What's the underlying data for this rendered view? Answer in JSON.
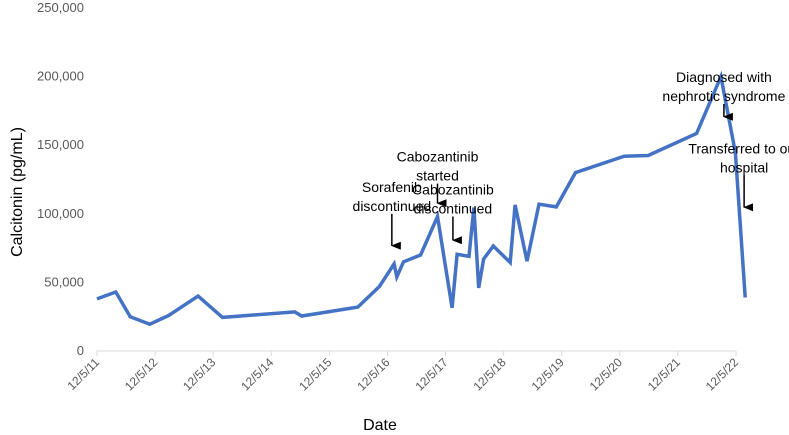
{
  "chart_data": {
    "type": "line",
    "title": "",
    "xlabel": "Date",
    "ylabel": "Calcitonin  (pg/mL)",
    "ylim": [
      0,
      250000
    ],
    "y_ticks": [
      0,
      50000,
      100000,
      150000,
      200000,
      250000
    ],
    "y_tick_labels": [
      "0",
      "50,000",
      "100,000",
      "150,000",
      "200,000",
      "250,000"
    ],
    "x_range": [
      "2011-12-05",
      "2022-12-05"
    ],
    "x_tick_labels": [
      "12/5/11",
      "12/5/12",
      "12/5/13",
      "12/5/14",
      "12/5/15",
      "12/5/16",
      "12/5/17",
      "12/5/18",
      "12/5/19",
      "12/5/20",
      "12/5/21",
      "12/5/22"
    ],
    "grid": false,
    "legend": "none",
    "line_color": "#4472C4",
    "series": [
      {
        "points": [
          [
            "2011-12-05",
            38000
          ],
          [
            "2012-04-01",
            43000
          ],
          [
            "2012-07-01",
            25000
          ],
          [
            "2012-11-01",
            19500
          ],
          [
            "2013-03-01",
            26000
          ],
          [
            "2013-09-01",
            40000
          ],
          [
            "2014-02-01",
            24500
          ],
          [
            "2015-05-01",
            28500
          ],
          [
            "2015-06-15",
            25500
          ],
          [
            "2016-06-01",
            32000
          ],
          [
            "2016-10-15",
            47000
          ],
          [
            "2017-01-15",
            63500
          ],
          [
            "2017-02-01",
            54000
          ],
          [
            "2017-03-15",
            65000
          ],
          [
            "2017-07-01",
            70000
          ],
          [
            "2017-10-15",
            98000
          ],
          [
            "2018-01-15",
            31500
          ],
          [
            "2018-02-15",
            70500
          ],
          [
            "2018-05-01",
            69000
          ],
          [
            "2018-06-01",
            104500
          ],
          [
            "2018-07-01",
            46000
          ],
          [
            "2018-08-01",
            67000
          ],
          [
            "2018-10-01",
            76500
          ],
          [
            "2019-01-15",
            64500
          ],
          [
            "2019-02-15",
            106500
          ],
          [
            "2019-05-01",
            65500
          ],
          [
            "2019-07-15",
            107000
          ],
          [
            "2019-11-01",
            105000
          ],
          [
            "2020-03-01",
            130000
          ],
          [
            "2021-01-01",
            142000
          ],
          [
            "2021-06-01",
            142500
          ],
          [
            "2022-04-01",
            158500
          ],
          [
            "2022-09-01",
            200000
          ],
          [
            "2022-12-01",
            144500
          ],
          [
            "2023-02-01",
            39000
          ]
        ]
      }
    ],
    "annotations": [
      {
        "lines": [
          "Sorafenib",
          "discontinued"
        ],
        "date": "2017-01-01",
        "value": 100000,
        "arrow_to": 76000
      },
      {
        "lines": [
          "Cabozantinib",
          "started"
        ],
        "date": "2017-10-15",
        "value": 122000,
        "arrow_to": 107000
      },
      {
        "lines": [
          "Cabozantinib",
          "discontinued"
        ],
        "date": "2018-01-20",
        "value": 98000,
        "arrow_to": 80000
      },
      {
        "lines": [
          "Diagnosed with",
          "nephrotic syndrome"
        ],
        "date": "2022-09-20",
        "value": 180000,
        "arrow_to": 170000
      },
      {
        "lines": [
          "Transferred to our",
          "hospital"
        ],
        "date": "2023-01-25",
        "value": 128000,
        "arrow_to": 104000
      }
    ]
  }
}
